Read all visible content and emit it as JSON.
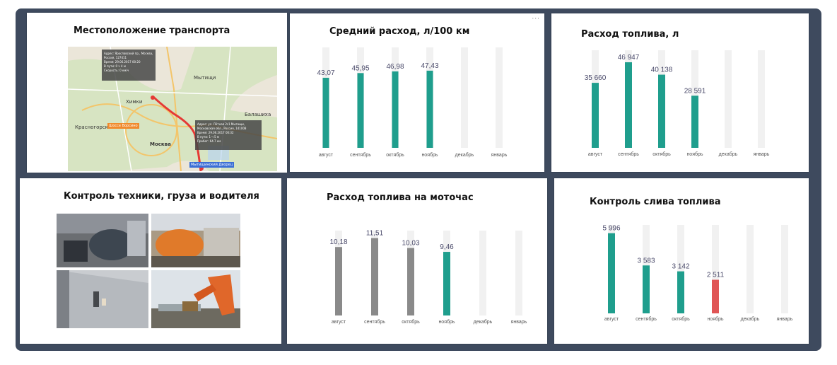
{
  "panels": {
    "location": {
      "title": "Местоположение транспорта"
    },
    "avg_consumption": {
      "title": "Средний расход, л/100 км"
    },
    "fuel_consumption": {
      "title": "Расход топлива, л"
    },
    "control": {
      "title": "Контроль техники, груза и водителя"
    },
    "moto_hour": {
      "title": "Расход топлива на моточас"
    },
    "drain": {
      "title": "Контроль слива топлива"
    }
  },
  "map": {
    "city_labels": [
      "Химки",
      "Мытищи",
      "Красногорск",
      "Москва",
      "Балашиха"
    ],
    "tooltip_top": [
      "Адрес: Ярославский пр., Москва,",
      "Россия, 127411",
      "Время: 29.06.2017 00:20",
      "В пути: 0 ч 4 м",
      "Скорость: 0 км/ч"
    ],
    "tooltip_bottom": [
      "Адрес: ул. Лётная 2с1 Мытищи,",
      "Московская обл., Россия, 141008",
      "Время: 29.06.2017 00:32",
      "В пути: 1 ч 5 м",
      "Пробег: 64.7 км"
    ],
    "marker_labels": [
      "Шоссе Ворсино",
      "Мытищинский Дворец"
    ],
    "colors": {
      "route": "#e53935",
      "land": "#e8e4d8",
      "green": "#c6dfb0",
      "tooltip": "#555555"
    }
  },
  "chart_data": [
    {
      "id": "avg_consumption",
      "type": "bar",
      "title": "Средний расход, л/100 км",
      "categories": [
        "август",
        "сентябрь",
        "октябрь",
        "ноябрь",
        "декабрь",
        "январь"
      ],
      "series": [
        {
          "values": [
            43.07,
            45.95,
            46.98,
            47.43,
            null,
            null
          ]
        }
      ],
      "value_labels": [
        "43,07",
        "45,95",
        "46,98",
        "47,43",
        "",
        ""
      ],
      "bar_colors": [
        "#1f9e8d",
        "#1f9e8d",
        "#1f9e8d",
        "#1f9e8d",
        "#1f9e8d",
        "#1f9e8d"
      ],
      "ylim": [
        0,
        60
      ],
      "background_bars": true
    },
    {
      "id": "fuel_consumption",
      "type": "bar",
      "title": "Расход топлива, л",
      "categories": [
        "август",
        "сентябрь",
        "октябрь",
        "ноябрь",
        "декабрь",
        "январь"
      ],
      "series": [
        {
          "values": [
            35660,
            46947,
            40138,
            28591,
            null,
            null
          ]
        }
      ],
      "value_labels": [
        "35 660",
        "46 947",
        "40 138",
        "28 591",
        "",
        ""
      ],
      "bar_colors": [
        "#1f9e8d",
        "#1f9e8d",
        "#1f9e8d",
        "#1f9e8d",
        "#1f9e8d",
        "#1f9e8d"
      ],
      "ylim": [
        0,
        52000
      ],
      "background_bars": true
    },
    {
      "id": "moto_hour",
      "type": "bar",
      "title": "Расход топлива на моточас",
      "categories": [
        "август",
        "сентябрь",
        "октябрь",
        "ноябрь",
        "декабрь",
        "январь"
      ],
      "series": [
        {
          "values": [
            10.18,
            11.51,
            10.03,
            9.46,
            null,
            null
          ]
        }
      ],
      "value_labels": [
        "10,18",
        "11,51",
        "10,03",
        "9,46",
        "",
        ""
      ],
      "bar_colors": [
        "#8a8a8a",
        "#8a8a8a",
        "#8a8a8a",
        "#1f9e8d",
        "#1f9e8d",
        "#1f9e8d"
      ],
      "ylim": [
        0,
        12.2
      ],
      "background_bars": true
    },
    {
      "id": "drain",
      "type": "bar",
      "title": "Контроль слива топлива",
      "categories": [
        "август",
        "сентябрь",
        "октябрь",
        "ноябрь",
        "декабрь",
        "январь"
      ],
      "series": [
        {
          "values": [
            5996,
            3583,
            3142,
            2511,
            null,
            null
          ]
        }
      ],
      "value_labels": [
        "5 996",
        "3 583",
        "3 142",
        "2 511",
        "",
        ""
      ],
      "bar_colors": [
        "#1f9e8d",
        "#1f9e8d",
        "#1f9e8d",
        "#e05555",
        "#1f9e8d",
        "#1f9e8d"
      ],
      "ylim": [
        0,
        6400
      ],
      "background_bars": true
    }
  ],
  "colors": {
    "frame": "#3e4a5e",
    "teal": "#1f9e8d",
    "gray": "#8a8a8a",
    "red": "#e05555",
    "track": "#f1f1f1",
    "label": "#4a4a6a"
  }
}
